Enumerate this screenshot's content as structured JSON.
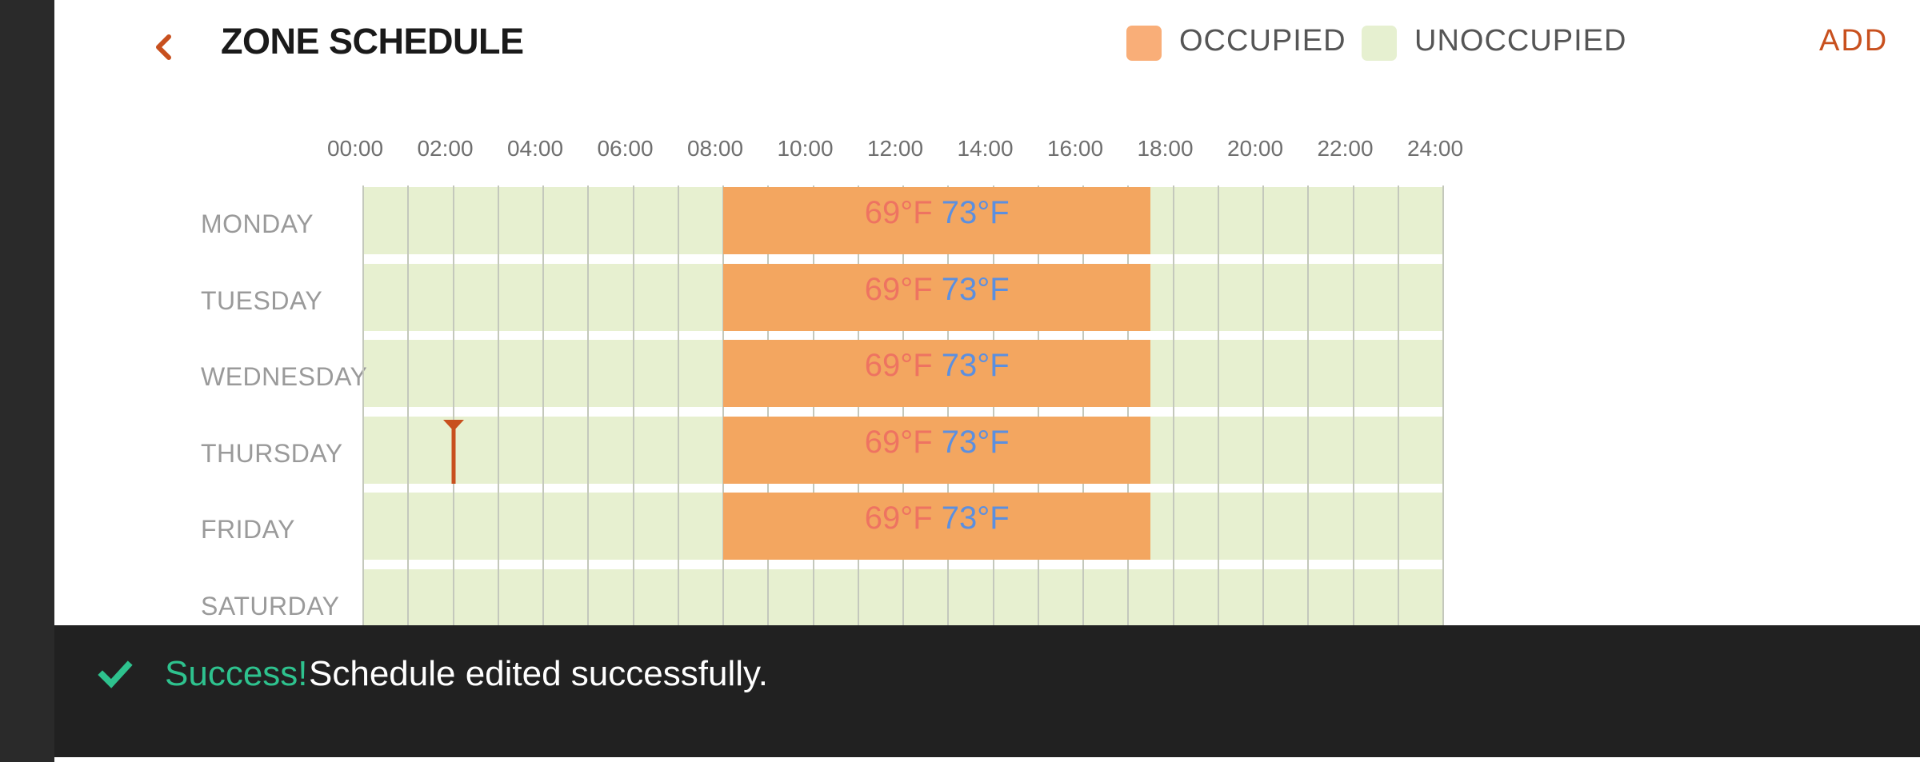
{
  "header": {
    "title": "ZONE SCHEDULE",
    "add_label": "ADD",
    "legend": [
      {
        "label": "OCCUPIED",
        "color": "#f9ae78"
      },
      {
        "label": "UNOCCUPIED",
        "color": "#e6f0d0"
      }
    ]
  },
  "timeline": {
    "ticks": [
      "00:00",
      "02:00",
      "04:00",
      "06:00",
      "08:00",
      "10:00",
      "12:00",
      "14:00",
      "16:00",
      "18:00",
      "20:00",
      "22:00",
      "24:00"
    ]
  },
  "days": [
    {
      "name": "MONDAY",
      "occupied": {
        "start": "08:00",
        "end": "17:30",
        "heat": "69°F",
        "cool": "73°F"
      }
    },
    {
      "name": "TUESDAY",
      "occupied": {
        "start": "08:00",
        "end": "17:30",
        "heat": "69°F",
        "cool": "73°F"
      }
    },
    {
      "name": "WEDNESDAY",
      "occupied": {
        "start": "08:00",
        "end": "17:30",
        "heat": "69°F",
        "cool": "73°F"
      }
    },
    {
      "name": "THURSDAY",
      "occupied": {
        "start": "08:00",
        "end": "17:30",
        "heat": "69°F",
        "cool": "73°F"
      }
    },
    {
      "name": "FRIDAY",
      "occupied": {
        "start": "08:00",
        "end": "17:30",
        "heat": "69°F",
        "cool": "73°F"
      }
    },
    {
      "name": "SATURDAY",
      "occupied": null
    }
  ],
  "current_time_marker": {
    "time": "02:00",
    "day": "THURSDAY",
    "color": "#c8501e"
  },
  "toast": {
    "success_label": "Success!",
    "message": "Schedule edited successfully."
  },
  "colors": {
    "accent": "#c8501e",
    "occupied_block": "#f3a660",
    "unoccupied_block": "#e7f0d0",
    "heat_setpoint": "#ee7361",
    "cool_setpoint": "#5b8fe0",
    "success": "#2ec28e"
  }
}
